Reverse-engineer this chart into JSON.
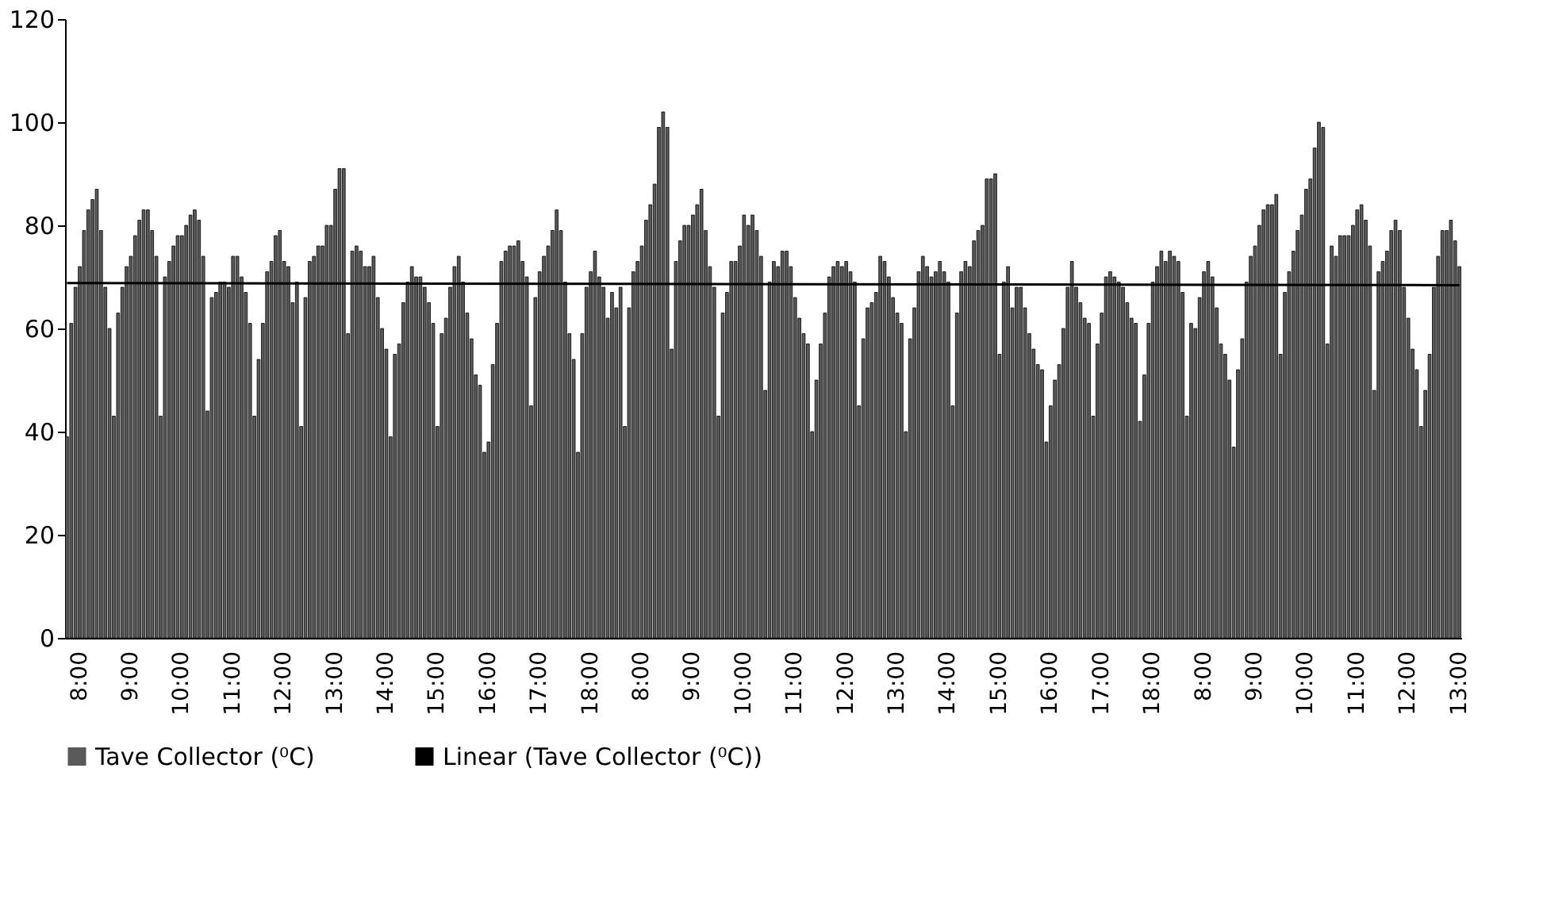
{
  "chart_data": {
    "type": "bar",
    "categories": [
      null,
      null,
      null,
      "8:00",
      null,
      null,
      null,
      null,
      null,
      null,
      null,
      null,
      null,
      null,
      null,
      "9:00",
      null,
      null,
      null,
      null,
      null,
      null,
      null,
      null,
      null,
      null,
      null,
      "10:00",
      null,
      null,
      null,
      null,
      null,
      null,
      null,
      null,
      null,
      null,
      null,
      "11:00",
      null,
      null,
      null,
      null,
      null,
      null,
      null,
      null,
      null,
      null,
      null,
      "12:00",
      null,
      null,
      null,
      null,
      null,
      null,
      null,
      null,
      null,
      null,
      null,
      "13:00",
      null,
      null,
      null,
      null,
      null,
      null,
      null,
      null,
      null,
      null,
      null,
      "14:00",
      null,
      null,
      null,
      null,
      null,
      null,
      null,
      null,
      null,
      null,
      null,
      "15:00",
      null,
      null,
      null,
      null,
      null,
      null,
      null,
      null,
      null,
      null,
      null,
      "16:00",
      null,
      null,
      null,
      null,
      null,
      null,
      null,
      null,
      null,
      null,
      null,
      "17:00",
      null,
      null,
      null,
      null,
      null,
      null,
      null,
      null,
      null,
      null,
      null,
      "18:00",
      null,
      null,
      null,
      null,
      null,
      null,
      null,
      null,
      null,
      null,
      null,
      "8:00",
      null,
      null,
      null,
      null,
      null,
      null,
      null,
      null,
      null,
      null,
      null,
      "9:00",
      null,
      null,
      null,
      null,
      null,
      null,
      null,
      null,
      null,
      null,
      null,
      "10:00",
      null,
      null,
      null,
      null,
      null,
      null,
      null,
      null,
      null,
      null,
      null,
      "11:00",
      null,
      null,
      null,
      null,
      null,
      null,
      null,
      null,
      null,
      null,
      null,
      "12:00",
      null,
      null,
      null,
      null,
      null,
      null,
      null,
      null,
      null,
      null,
      null,
      "13:00",
      null,
      null,
      null,
      null,
      null,
      null,
      null,
      null,
      null,
      null,
      null,
      "14:00",
      null,
      null,
      null,
      null,
      null,
      null,
      null,
      null,
      null,
      null,
      null,
      "15:00",
      null,
      null,
      null,
      null,
      null,
      null,
      null,
      null,
      null,
      null,
      null,
      "16:00",
      null,
      null,
      null,
      null,
      null,
      null,
      null,
      null,
      null,
      null,
      null,
      "17:00",
      null,
      null,
      null,
      null,
      null,
      null,
      null,
      null,
      null,
      null,
      null,
      "18:00",
      null,
      null,
      null,
      null,
      null,
      null,
      null,
      null,
      null,
      null,
      null,
      "8:00",
      null,
      null,
      null,
      null,
      null,
      null,
      null,
      null,
      null,
      null,
      null,
      "9:00",
      null,
      null,
      null,
      null,
      null,
      null,
      null,
      null,
      null,
      null,
      null,
      "10:00",
      null,
      null,
      null,
      null,
      null,
      null,
      null,
      null,
      null,
      null,
      null,
      "11:00",
      null,
      null,
      null,
      null,
      null,
      null,
      null,
      null,
      null,
      null,
      null,
      "12:00",
      null,
      null,
      null,
      null,
      null,
      null,
      null,
      null,
      null,
      null,
      null,
      "13:00"
    ],
    "series": [
      {
        "name": "Tave Collector (⁰C)",
        "color": "#595959",
        "values": [
          39,
          61,
          68,
          72,
          79,
          83,
          85,
          87,
          79,
          68,
          60,
          43,
          63,
          68,
          72,
          74,
          78,
          81,
          83,
          83,
          79,
          74,
          43,
          70,
          73,
          76,
          78,
          78,
          80,
          82,
          83,
          81,
          74,
          44,
          66,
          67,
          69,
          69,
          68,
          74,
          74,
          70,
          67,
          61,
          43,
          54,
          61,
          71,
          73,
          78,
          79,
          73,
          72,
          65,
          69,
          41,
          66,
          73,
          74,
          76,
          76,
          80,
          80,
          87,
          91,
          91,
          59,
          75,
          76,
          75,
          72,
          72,
          74,
          66,
          60,
          56,
          39,
          55,
          57,
          65,
          69,
          72,
          70,
          70,
          68,
          65,
          61,
          41,
          59,
          62,
          68,
          72,
          74,
          69,
          63,
          58,
          51,
          49,
          36,
          38,
          53,
          61,
          73,
          75,
          76,
          76,
          77,
          73,
          70,
          45,
          66,
          71,
          74,
          76,
          79,
          83,
          79,
          69,
          59,
          54,
          36,
          59,
          68,
          71,
          75,
          70,
          68,
          62,
          67,
          64,
          68,
          41,
          64,
          71,
          73,
          76,
          81,
          84,
          88,
          99,
          102,
          99,
          56,
          73,
          77,
          80,
          80,
          82,
          84,
          87,
          79,
          72,
          68,
          43,
          63,
          67,
          73,
          73,
          76,
          82,
          80,
          82,
          79,
          74,
          48,
          69,
          73,
          72,
          75,
          75,
          72,
          66,
          62,
          59,
          57,
          40,
          50,
          57,
          63,
          70,
          72,
          73,
          72,
          73,
          71,
          69,
          45,
          58,
          64,
          65,
          67,
          74,
          73,
          70,
          66,
          63,
          61,
          40,
          58,
          64,
          71,
          74,
          72,
          70,
          71,
          73,
          71,
          69,
          45,
          63,
          71,
          73,
          72,
          77,
          79,
          80,
          89,
          89,
          90,
          55,
          69,
          72,
          64,
          68,
          68,
          64,
          59,
          56,
          53,
          52,
          38,
          45,
          50,
          53,
          60,
          68,
          73,
          68,
          65,
          62,
          61,
          43,
          57,
          63,
          70,
          71,
          70,
          69,
          68,
          65,
          62,
          61,
          42,
          51,
          61,
          69,
          72,
          75,
          73,
          75,
          74,
          73,
          67,
          43,
          61,
          60,
          66,
          71,
          73,
          70,
          64,
          57,
          55,
          50,
          37,
          52,
          58,
          69,
          74,
          76,
          80,
          83,
          84,
          84,
          86,
          55,
          67,
          71,
          75,
          79,
          82,
          87,
          89,
          95,
          100,
          99,
          57,
          76,
          74,
          78,
          78,
          78,
          80,
          83,
          84,
          81,
          76,
          48,
          71,
          73,
          75,
          79,
          81,
          79,
          68,
          62,
          56,
          52,
          41,
          48,
          55,
          68,
          74,
          79,
          79,
          81,
          77,
          72
        ]
      },
      {
        "name": "Linear (Tave Collector (⁰C))",
        "type": "line",
        "color": "#000000",
        "values": [
          68.8,
          null,
          null,
          null,
          null,
          null,
          null,
          null,
          null,
          null,
          null,
          null,
          null,
          null,
          null,
          null,
          null,
          null,
          null,
          null,
          null,
          null,
          null,
          null,
          null,
          null,
          null,
          null,
          null,
          null,
          null,
          null,
          null,
          null,
          null,
          null,
          null,
          null,
          null,
          null,
          null,
          null,
          null,
          null,
          null,
          null,
          null,
          null,
          null,
          null,
          null,
          null,
          null,
          null,
          null,
          null,
          null,
          null,
          null,
          null,
          null,
          null,
          null,
          null,
          null,
          null,
          null,
          null,
          null,
          null,
          null,
          null,
          null,
          null,
          null,
          null,
          null,
          null,
          null,
          null,
          null,
          null,
          null,
          null,
          null,
          null,
          null,
          null,
          null,
          null,
          null,
          null,
          null,
          null,
          null,
          null,
          null,
          null,
          null,
          null,
          null,
          null,
          null,
          null,
          null,
          null,
          null,
          null,
          null,
          null,
          null,
          null,
          null,
          null,
          null,
          null,
          null,
          null,
          null,
          null,
          null,
          null,
          null,
          null,
          null,
          null,
          null,
          null,
          null,
          null,
          null,
          null,
          null,
          null,
          null,
          null,
          null,
          null,
          null,
          null,
          null,
          null,
          null,
          null,
          null,
          null,
          null,
          null,
          null,
          null,
          null,
          null,
          null,
          null,
          null,
          null,
          null,
          null,
          null,
          null,
          null,
          null,
          null,
          null,
          null,
          null,
          null,
          null,
          null,
          null,
          null,
          null,
          null,
          null,
          null,
          null,
          null,
          null,
          null,
          null,
          null,
          null,
          null,
          null,
          null,
          null,
          null,
          null,
          null,
          null,
          null,
          null,
          null,
          null,
          null,
          null,
          null,
          null,
          null,
          null,
          null,
          null,
          null,
          null,
          null,
          null,
          null,
          null,
          null,
          null,
          null,
          null,
          null,
          null,
          null,
          null,
          null,
          null,
          null,
          null,
          null,
          null,
          null,
          null,
          null,
          null,
          null,
          null,
          null,
          null,
          null,
          null,
          null,
          null,
          null,
          null,
          null,
          null,
          null,
          null,
          null,
          null,
          null,
          null,
          null,
          null,
          null,
          null,
          null,
          null,
          null,
          null,
          null,
          null,
          null,
          null,
          null,
          null,
          null,
          null,
          null,
          null,
          null,
          null,
          null,
          null,
          null,
          null,
          null,
          null,
          null,
          null,
          null,
          null,
          null,
          null,
          null,
          null,
          null,
          null,
          null,
          null,
          null,
          null,
          null,
          null,
          null,
          null,
          null,
          null,
          null,
          null,
          null,
          null,
          null,
          null,
          null,
          null,
          null,
          null,
          null,
          null,
          null,
          null,
          null,
          null,
          null,
          null,
          null,
          null,
          null,
          null,
          null,
          null,
          null,
          null,
          null,
          null,
          null,
          null,
          null,
          null,
          null,
          null,
          null,
          null,
          null,
          68.4
        ]
      }
    ],
    "ylim": [
      0,
      120
    ],
    "yticks": [
      0,
      20,
      40,
      60,
      80,
      100,
      120
    ],
    "grid": false,
    "legend": "bottom"
  }
}
